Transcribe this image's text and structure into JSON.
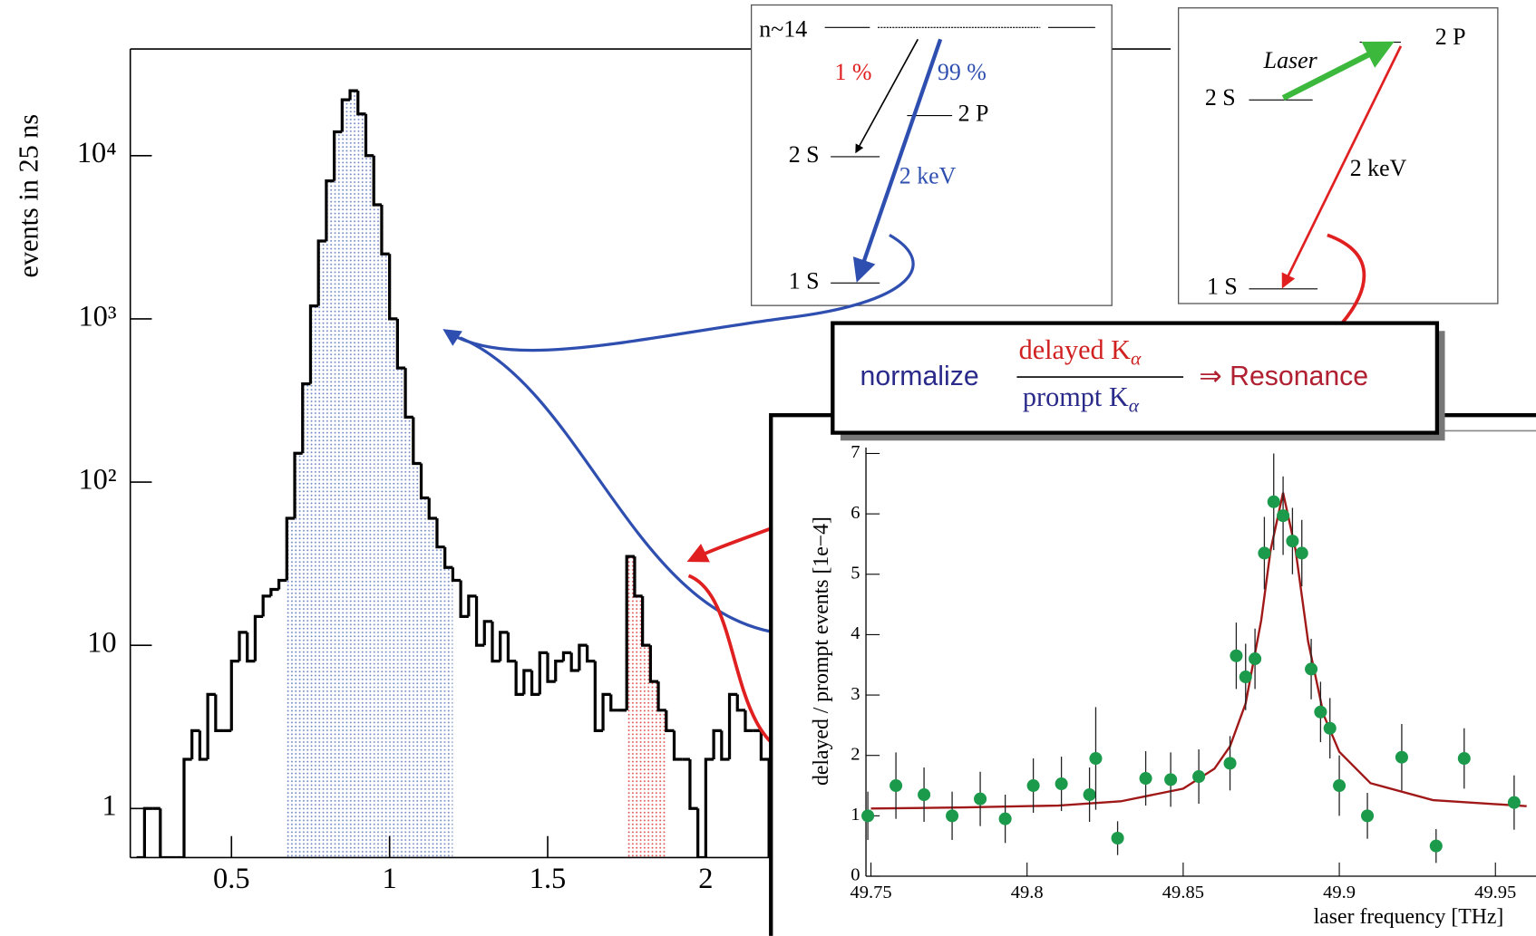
{
  "chart_data": [
    {
      "type": "histogram",
      "y_label": "events in 25 ns",
      "log_y": true,
      "bins": [
        0.2,
        0.225,
        0.25,
        0.275,
        0.3,
        0.325,
        0.35,
        0.375,
        0.4,
        0.425,
        0.45,
        0.475,
        0.5,
        0.525,
        0.55,
        0.575,
        0.6,
        0.625,
        0.65,
        0.675,
        0.7,
        0.725,
        0.75,
        0.775,
        0.8,
        0.825,
        0.85,
        0.875,
        0.9,
        0.925,
        0.95,
        0.975,
        1.0,
        1.025,
        1.05,
        1.075,
        1.1,
        1.125,
        1.15,
        1.175,
        1.2,
        1.225,
        1.25,
        1.275,
        1.3,
        1.325,
        1.35,
        1.375,
        1.4,
        1.425,
        1.45,
        1.475,
        1.5,
        1.525,
        1.55,
        1.575,
        1.6,
        1.625,
        1.65,
        1.675,
        1.7,
        1.725,
        1.75,
        1.775,
        1.8,
        1.825,
        1.85,
        1.875,
        1.9,
        1.925,
        1.95,
        1.975,
        2.0,
        2.025,
        2.05,
        2.075,
        2.1,
        2.125,
        2.15,
        2.175,
        2.2
      ],
      "values": [
        0,
        1,
        1,
        0,
        0,
        0,
        2,
        3,
        2,
        5,
        3,
        3,
        8,
        12,
        8,
        15,
        20,
        22,
        25,
        60,
        150,
        400,
        1200,
        3000,
        7000,
        14000,
        22000,
        25000,
        18000,
        10000,
        5000,
        2500,
        1000,
        500,
        250,
        130,
        80,
        60,
        40,
        30,
        25,
        15,
        20,
        10,
        14,
        8,
        12,
        8,
        5,
        7,
        5,
        9,
        6,
        8,
        9,
        7,
        10,
        8,
        3,
        5,
        4,
        4,
        35,
        20,
        10,
        6,
        4,
        3,
        2,
        2,
        1,
        0,
        2,
        3,
        2,
        5,
        4,
        3,
        3,
        2
      ],
      "shaded": [
        {
          "from": 0.675,
          "to": 1.2,
          "color": "#6f86c4"
        },
        {
          "from": 1.75,
          "to": 1.875,
          "color": "#e05050"
        }
      ],
      "color": "#000000",
      "xlim": [
        0.18,
        3.47
      ],
      "xticks": [
        0.5,
        1,
        1.5,
        2
      ],
      "ylim": [
        0.5,
        45000
      ],
      "yticks": [
        1,
        10,
        {
          "value": 100,
          "label": "10²"
        },
        {
          "value": 1000,
          "label": "10³"
        },
        {
          "value": 10000,
          "label": "10⁴"
        }
      ]
    },
    {
      "type": "scatter",
      "x_label": "laser frequency [THz]",
      "y_label": "delayed / prompt events [1e−4]",
      "x": [
        49.749,
        49.758,
        49.767,
        49.776,
        49.785,
        49.793,
        49.802,
        49.811,
        49.82,
        49.822,
        49.829,
        49.838,
        49.846,
        49.855,
        49.865,
        49.867,
        49.87,
        49.873,
        49.876,
        49.879,
        49.882,
        49.885,
        49.888,
        49.891,
        49.894,
        49.897,
        49.9,
        49.909,
        49.92,
        49.931,
        49.94,
        49.956
      ],
      "values": [
        1.0,
        1.5,
        1.35,
        1.0,
        1.28,
        0.95,
        1.5,
        1.53,
        1.35,
        1.95,
        0.63,
        1.62,
        1.6,
        1.65,
        1.87,
        3.65,
        3.3,
        3.6,
        5.35,
        6.2,
        5.97,
        5.55,
        5.35,
        3.43,
        2.72,
        2.45,
        1.5,
        1.0,
        1.97,
        0.5,
        1.95,
        1.22
      ],
      "errors": [
        0.4,
        0.55,
        0.45,
        0.4,
        0.45,
        0.4,
        0.45,
        0.45,
        0.45,
        0.85,
        0.28,
        0.45,
        0.45,
        0.45,
        0.45,
        0.55,
        0.55,
        0.5,
        0.6,
        0.8,
        0.65,
        0.55,
        0.55,
        0.5,
        0.5,
        0.5,
        0.5,
        0.38,
        0.55,
        0.28,
        0.5,
        0.45
      ],
      "color": "#1a9a4a",
      "fit": {
        "x": [
          49.75,
          49.78,
          49.81,
          49.83,
          49.85,
          49.86,
          49.865,
          49.87,
          49.875,
          49.878,
          49.882,
          49.886,
          49.89,
          49.895,
          49.9,
          49.91,
          49.93,
          49.96
        ],
        "values": [
          1.12,
          1.14,
          1.17,
          1.24,
          1.45,
          1.78,
          2.15,
          2.86,
          4.24,
          5.4,
          6.35,
          5.4,
          3.89,
          2.67,
          2.06,
          1.54,
          1.26,
          1.16
        ],
        "color": "#a01818"
      },
      "xlim": [
        49.7484,
        49.963
      ],
      "xticks": [
        49.75,
        49.8,
        49.85,
        49.9,
        49.95
      ],
      "ylim": [
        0,
        7.1
      ],
      "yticks": [
        0,
        1,
        2,
        3,
        4,
        5,
        6,
        7
      ]
    }
  ],
  "diagram": {
    "left_box": {
      "top": "n~14",
      "branch_a": "1 %",
      "branch_b": "99 %",
      "level_2p": "2 P",
      "level_2s": "2 S",
      "energy": "2 keV",
      "level_1s": "1 S"
    },
    "right_box": {
      "laser": "Laser",
      "level_2p": "2 P",
      "level_2s": "2 S",
      "energy": "2 keV",
      "level_1s": "1 S"
    },
    "formula": {
      "lead": "normalize",
      "numerator": "delayed K",
      "numerator_sub": "α",
      "denominator": "prompt K",
      "denominator_sub": "α",
      "result": "⇒ Resonance"
    }
  }
}
